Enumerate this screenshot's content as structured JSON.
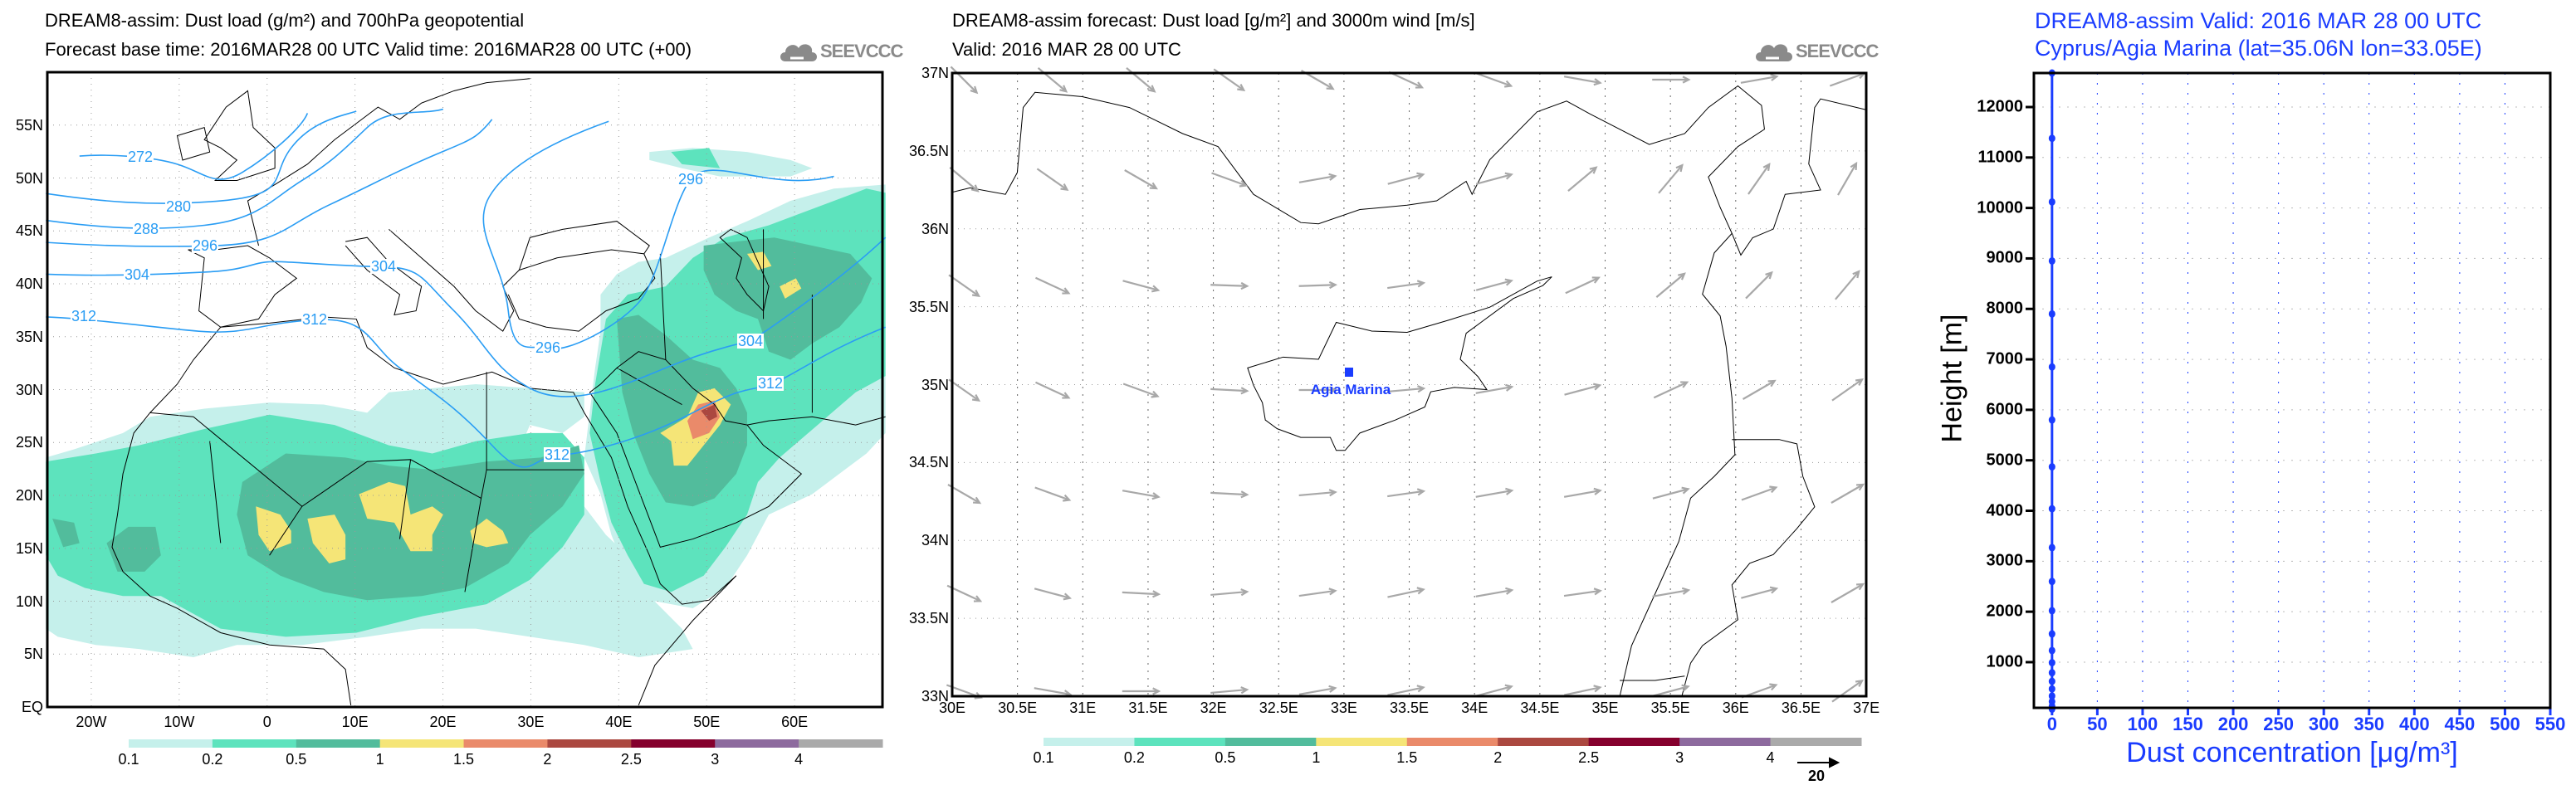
{
  "panel1": {
    "title": "DREAM8-assim: Dust load (g/m²) and 700hPa geopotential",
    "subtitle": "Forecast base time: 2016MAR28 00 UTC  Valid time: 2016MAR28 00 UTC  (+00)",
    "logo_text": "SEEVCCC",
    "lat_labels": [
      "EQ",
      "5N",
      "10N",
      "15N",
      "20N",
      "25N",
      "30N",
      "35N",
      "40N",
      "45N",
      "50N",
      "55N"
    ],
    "lon_labels": [
      "20W",
      "10W",
      "0",
      "10E",
      "20E",
      "30E",
      "40E",
      "50E",
      "60E"
    ],
    "contour_labels": [
      "272",
      "280",
      "288",
      "296",
      "304",
      "304",
      "312",
      "312",
      "296",
      "296",
      "304",
      "312",
      "312"
    ],
    "colorbar": {
      "labels": [
        "0.1",
        "0.2",
        "0.5",
        "1",
        "1.5",
        "2",
        "2.5",
        "3",
        "4"
      ],
      "colors": [
        "#c5f0eb",
        "#5de3bd",
        "#52bc9c",
        "#f5e577",
        "#ea8a6a",
        "#ab4840",
        "#85002d",
        "#8d6a9e",
        "#aaaaaa"
      ]
    }
  },
  "panel2": {
    "title": "DREAM8-assim forecast: Dust load [g/m²] and 3000m wind [m/s]",
    "subtitle": "Valid: 2016 MAR 28  00 UTC",
    "logo_text": "SEEVCCC",
    "lat_labels": [
      "33N",
      "33.5N",
      "34N",
      "34.5N",
      "35N",
      "35.5N",
      "36N",
      "36.5N",
      "37N"
    ],
    "lon_labels": [
      "30E",
      "30.5E",
      "31E",
      "31.5E",
      "32E",
      "32.5E",
      "33E",
      "33.5E",
      "34E",
      "34.5E",
      "35E",
      "35.5E",
      "36E",
      "36.5E",
      "37E"
    ],
    "station_label": "Agia Marina",
    "wind_ref_label": "20",
    "wind_direction_deg_rows": [
      [
        45,
        40,
        40,
        35,
        30,
        25,
        20,
        10,
        0,
        -10,
        -20
      ],
      [
        40,
        35,
        30,
        20,
        -10,
        -15,
        -15,
        -40,
        -50,
        -55,
        -60
      ],
      [
        35,
        25,
        15,
        2,
        -2,
        -8,
        -15,
        -25,
        -40,
        -45,
        -50
      ],
      [
        35,
        25,
        20,
        3,
        0,
        -5,
        -10,
        -15,
        -25,
        -30,
        -35
      ],
      [
        30,
        20,
        10,
        3,
        -5,
        -8,
        -10,
        -10,
        -15,
        -20,
        -30
      ],
      [
        25,
        15,
        3,
        -5,
        -8,
        -12,
        -10,
        -8,
        -10,
        -15,
        -30
      ],
      [
        20,
        10,
        0,
        -5,
        -10,
        -12,
        -15,
        -12,
        -15,
        -20,
        -35
      ]
    ],
    "colorbar": {
      "labels": [
        "0.1",
        "0.2",
        "0.5",
        "1",
        "1.5",
        "2",
        "2.5",
        "3",
        "4"
      ],
      "colors": [
        "#c5f0eb",
        "#5de3bd",
        "#52bc9c",
        "#f5e577",
        "#ea8a6a",
        "#ab4840",
        "#85002d",
        "#8d6a9e",
        "#aaaaaa"
      ]
    }
  },
  "chart_data": {
    "type": "line",
    "title": "DREAM8-assim  Valid: 2016 MAR 28  00 UTC",
    "subtitle": "Cyprus/Agia Marina (lat=35.06N lon=33.05E)",
    "xlabel": "Dust concentration [μg/m³]",
    "ylabel": "Height [m]",
    "xlim": [
      -20,
      550
    ],
    "ylim": [
      95,
      12674
    ],
    "xticks": [
      "0",
      "50",
      "100",
      "150",
      "200",
      "250",
      "300",
      "350",
      "400",
      "450",
      "500",
      "550"
    ],
    "yticks": [
      "1000",
      "2000",
      "3000",
      "4000",
      "5000",
      "6000",
      "7000",
      "8000",
      "9000",
      "10000",
      "11000",
      "12000"
    ],
    "grid": true,
    "series": [
      {
        "name": "Dust concentration",
        "color": "#1a3cff",
        "height": [
          12674,
          11380,
          10120,
          8950,
          7900,
          6850,
          5800,
          4870,
          4040,
          3270,
          2600,
          2020,
          1560,
          1230,
          990,
          790,
          620,
          470,
          330,
          220,
          130,
          70
        ],
        "values": [
          0,
          0,
          0,
          0,
          0,
          0,
          0,
          0,
          0,
          0,
          0,
          0,
          0,
          0,
          0,
          0,
          0,
          0,
          0,
          0,
          0,
          0
        ]
      }
    ]
  }
}
